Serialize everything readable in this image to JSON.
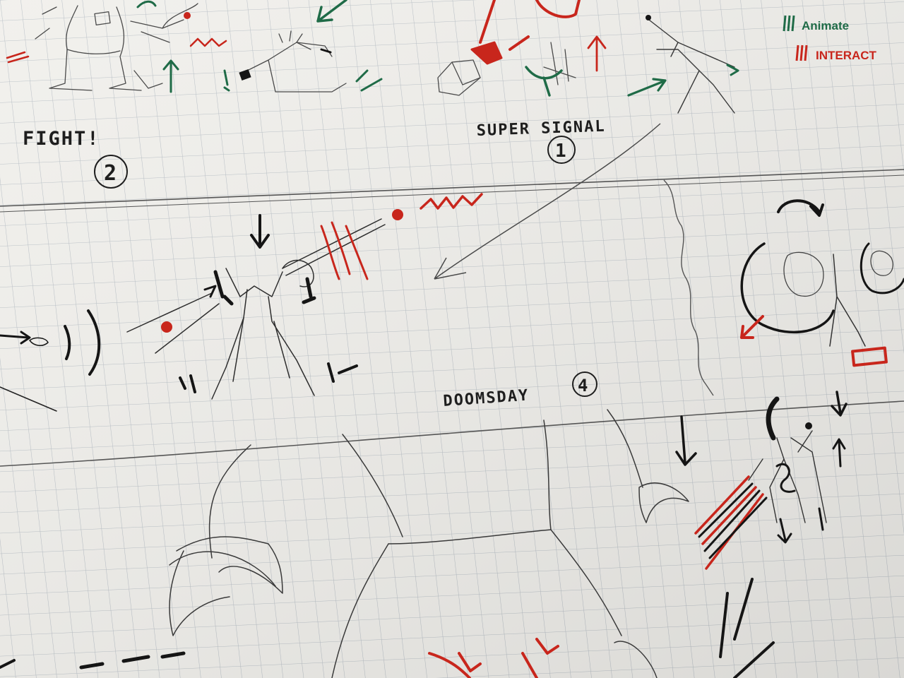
{
  "image": {
    "subject": "storyboard-sketch-on-grid-paper"
  },
  "legend": {
    "animate_label": "Animate",
    "interact_label": "INTERACT",
    "animate_color": "#1f6b47",
    "interact_color": "#c8261c"
  },
  "panels": [
    {
      "label": "FIGHT!",
      "number": "2"
    },
    {
      "label": "SUPER SIGNAL",
      "number": "1"
    },
    {
      "label": "DOOMSDAY",
      "number": "4"
    }
  ],
  "colors": {
    "paper": "#f1f0ec",
    "grid": "#b9c0c6",
    "pencil": "#3a3a3a",
    "ink_dark": "#151515",
    "marker_green": "#1f6b47",
    "marker_red": "#c8261c"
  }
}
